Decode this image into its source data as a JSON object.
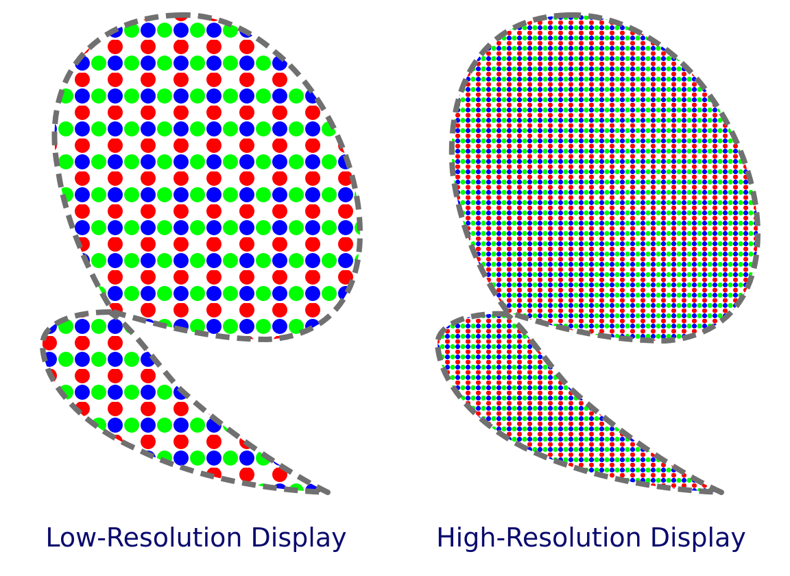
{
  "panels": [
    {
      "id": "low",
      "caption": "Low-Resolution Display",
      "density": "low"
    },
    {
      "id": "high",
      "caption": "High-Resolution Display",
      "density": "high"
    }
  ],
  "colors": {
    "subpixel_red": "#ff0000",
    "subpixel_green": "#00ff00",
    "subpixel_blue": "#0000ff",
    "outline": "#707070",
    "caption_text": "#0a0a6e",
    "background": "#ffffff"
  },
  "subpixel_row_pattern": [
    "red",
    "green",
    "blue"
  ]
}
